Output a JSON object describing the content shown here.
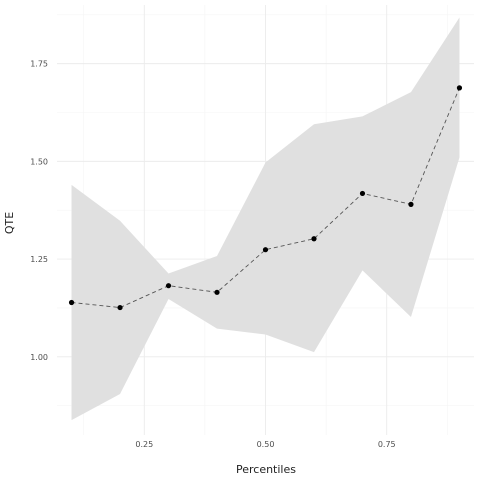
{
  "chart_data": {
    "type": "line",
    "title": "",
    "xlabel": "Percentiles",
    "ylabel": "QTE",
    "xlim": [
      0.07,
      0.93
    ],
    "ylim": [
      0.8,
      1.9
    ],
    "x_ticks": [
      0.25,
      0.5,
      0.75
    ],
    "x_tick_labels": [
      "0.25",
      "0.50",
      "0.75"
    ],
    "y_ticks": [
      1.0,
      1.25,
      1.5,
      1.75
    ],
    "y_tick_labels": [
      "1.00",
      "1.25",
      "1.50",
      "1.75"
    ],
    "grid": true,
    "legend": "none",
    "x": [
      0.1,
      0.2,
      0.3,
      0.4,
      0.5,
      0.6,
      0.7,
      0.8,
      0.9
    ],
    "series": [
      {
        "values": [
          1.139,
          1.126,
          1.182,
          1.165,
          1.274,
          1.302,
          1.418,
          1.39,
          1.688
        ]
      }
    ],
    "band": {
      "lower": [
        0.838,
        0.905,
        1.148,
        1.072,
        1.057,
        1.012,
        1.221,
        1.102,
        1.51
      ],
      "upper": [
        1.44,
        1.348,
        1.213,
        1.258,
        1.497,
        1.595,
        1.615,
        1.677,
        1.868
      ]
    },
    "colors": {
      "band": "#e0e0e0",
      "line": "#555555",
      "point": "#000000",
      "grid_major": "#ebebeb",
      "grid_minor": "#f5f5f5"
    }
  }
}
